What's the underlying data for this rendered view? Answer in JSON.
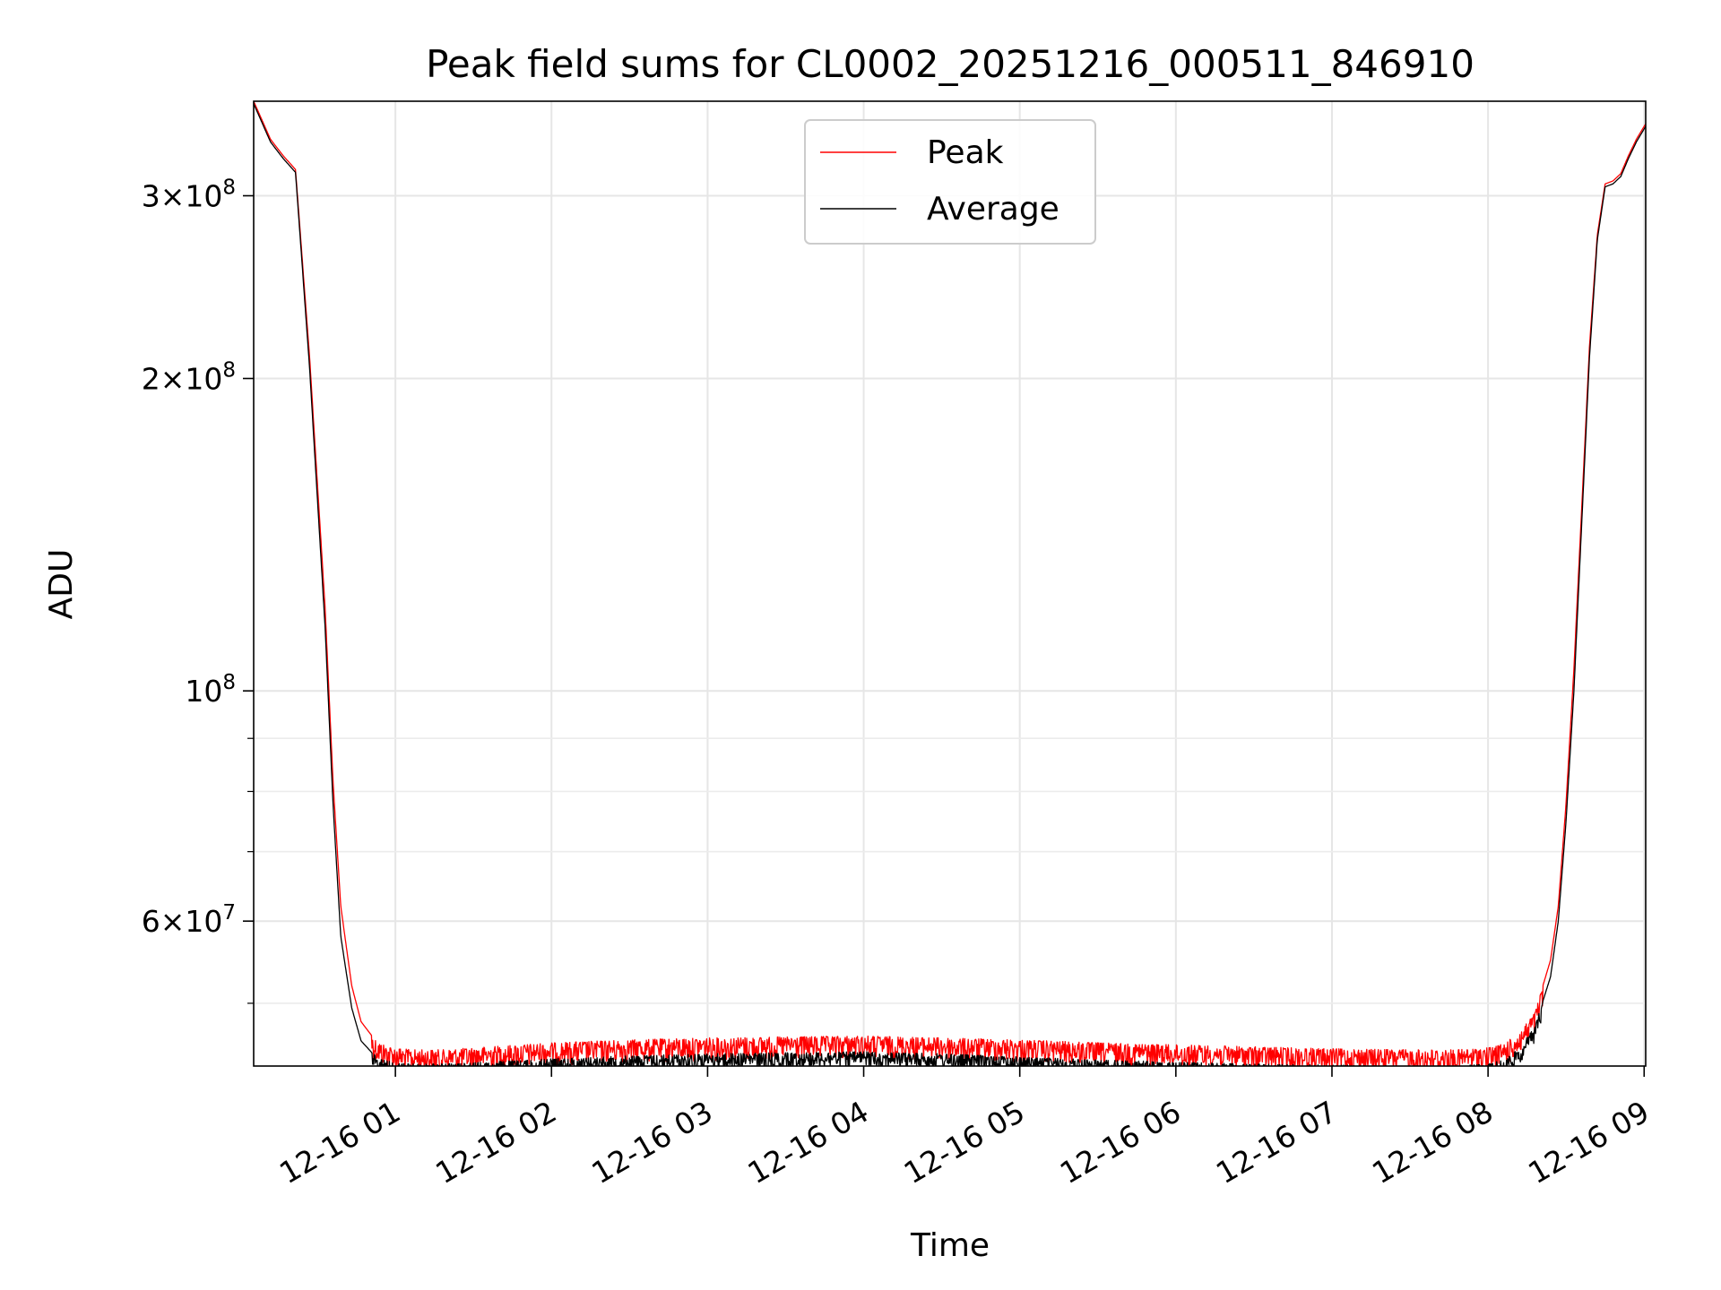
{
  "chart_data": {
    "type": "line",
    "title": "Peak field sums for CL0002_20251216_000511_846910",
    "xlabel": "Time",
    "ylabel": "ADU",
    "yscale": "log",
    "grid": true,
    "legend_position": "top-center",
    "xlim_hours": [
      0.092,
      9.01
    ],
    "ylim": [
      43500000,
      370000000
    ],
    "xticks": [
      {
        "hour": 1,
        "label": "12-16 01"
      },
      {
        "hour": 2,
        "label": "12-16 02"
      },
      {
        "hour": 3,
        "label": "12-16 03"
      },
      {
        "hour": 4,
        "label": "12-16 04"
      },
      {
        "hour": 5,
        "label": "12-16 05"
      },
      {
        "hour": 6,
        "label": "12-16 06"
      },
      {
        "hour": 7,
        "label": "12-16 07"
      },
      {
        "hour": 8,
        "label": "12-16 08"
      },
      {
        "hour": 9,
        "label": "12-16 09"
      }
    ],
    "yticks_major": [
      {
        "value": 60000000,
        "mantissa": "6",
        "exponent": "7"
      },
      {
        "value": 100000000,
        "mantissa": "",
        "exponent": "8"
      },
      {
        "value": 200000000,
        "mantissa": "2",
        "exponent": "8"
      },
      {
        "value": 300000000,
        "mantissa": "3",
        "exponent": "8"
      }
    ],
    "yticks_minor": [
      50000000,
      70000000,
      80000000,
      90000000
    ],
    "series": [
      {
        "name": "Peak",
        "color": "#ff0000",
        "x_hours": [
          0.092,
          0.2,
          0.28,
          0.36,
          0.45,
          0.55,
          0.6,
          0.65,
          0.72,
          0.78,
          0.85,
          0.9,
          0.95,
          1.0,
          1.1,
          1.3,
          1.6,
          2.0,
          2.5,
          3.0,
          3.5,
          4.0,
          4.5,
          5.0,
          5.5,
          6.0,
          6.5,
          7.0,
          7.5,
          7.8,
          8.0,
          8.1,
          8.2,
          8.3,
          8.4,
          8.45,
          8.5,
          8.55,
          8.6,
          8.65,
          8.7,
          8.75,
          8.8,
          8.85,
          8.9,
          8.95,
          9.01
        ],
        "values": [
          370000000,
          340000000,
          328000000,
          318000000,
          210000000,
          120000000,
          82000000,
          62000000,
          52000000,
          48000000,
          46500000,
          45800000,
          45500000,
          45300000,
          45100000,
          45100000,
          45400000,
          45800000,
          46100000,
          46300000,
          46400000,
          46500000,
          46300000,
          46100000,
          45800000,
          45600000,
          45400000,
          45200000,
          45100000,
          45100000,
          45300000,
          45700000,
          46800000,
          49000000,
          55000000,
          62000000,
          78000000,
          105000000,
          150000000,
          215000000,
          275000000,
          308000000,
          310000000,
          315000000,
          328000000,
          340000000,
          352000000
        ]
      },
      {
        "name": "Average",
        "color": "#000000",
        "x_hours": [
          0.092,
          0.2,
          0.28,
          0.36,
          0.45,
          0.55,
          0.6,
          0.65,
          0.72,
          0.78,
          0.85,
          0.9,
          0.95,
          1.0,
          1.1,
          1.3,
          1.6,
          2.0,
          2.5,
          3.0,
          3.5,
          4.0,
          4.5,
          5.0,
          5.5,
          6.0,
          6.5,
          7.0,
          7.5,
          7.8,
          8.0,
          8.1,
          8.2,
          8.3,
          8.4,
          8.45,
          8.5,
          8.55,
          8.6,
          8.65,
          8.7,
          8.75,
          8.8,
          8.85,
          8.9,
          8.95,
          9.01
        ],
        "values": [
          368000000,
          338000000,
          326000000,
          316000000,
          205000000,
          115000000,
          78000000,
          58000000,
          49500000,
          46000000,
          44800000,
          44200000,
          44000000,
          43800000,
          43700000,
          43700000,
          43900000,
          44200000,
          44500000,
          44700000,
          44800000,
          44900000,
          44700000,
          44400000,
          44100000,
          43900000,
          43700000,
          43600000,
          43500000,
          43500000,
          43700000,
          44100000,
          45200000,
          47500000,
          53000000,
          60000000,
          75000000,
          100000000,
          145000000,
          210000000,
          272000000,
          306000000,
          308000000,
          313000000,
          326000000,
          338000000,
          350000000
        ]
      }
    ]
  }
}
